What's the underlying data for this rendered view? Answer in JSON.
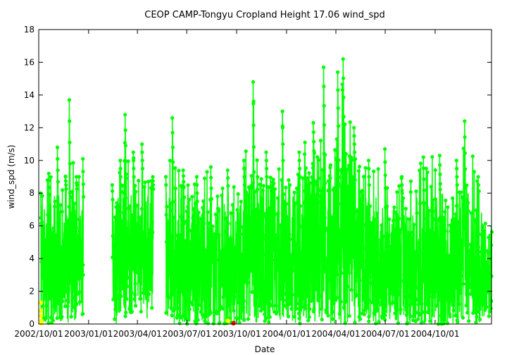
{
  "chart_data": {
    "type": "scatter",
    "title": "CEOP CAMP-Tongyu Cropland Height 17.06 wind_spd",
    "xlabel": "Date",
    "ylabel": "wind_spd (m/s)",
    "x_type": "date",
    "xlim": [
      "2002-10-01",
      "2005-01-13"
    ],
    "ylim": [
      0,
      18
    ],
    "yticks": [
      0,
      2,
      4,
      6,
      8,
      10,
      12,
      14,
      16,
      18
    ],
    "xticks": [
      {
        "date": "2002-10-01",
        "label": "2002/10/01"
      },
      {
        "date": "2003-01-01",
        "label": "2003/01/01"
      },
      {
        "date": "2003-04-01",
        "label": "2003/04/01"
      },
      {
        "date": "2003-07-01",
        "label": "2003/07/01"
      },
      {
        "date": "2003-10-01",
        "label": "2003/10/01"
      },
      {
        "date": "2004-01-01",
        "label": "2004/01/01"
      },
      {
        "date": "2004-04-01",
        "label": "2004/04/01"
      },
      {
        "date": "2004-07-01",
        "label": "2004/07/01"
      },
      {
        "date": "2004-10-01",
        "label": "2004/10/01"
      }
    ],
    "grid": false,
    "legend": "none",
    "series": [
      {
        "color": "#00ff00",
        "marker": "circle",
        "connected": true,
        "segments": [
          {
            "start": "2002-10-05",
            "end": "2002-12-22"
          },
          {
            "start": "2003-02-14",
            "end": "2003-04-30"
          },
          {
            "start": "2003-05-24",
            "end": "2005-01-13"
          }
        ],
        "envelope": [
          {
            "x": "2002-10-05",
            "low": 0.0,
            "high": 6.5,
            "max": 8.0
          },
          {
            "x": "2002-10-20",
            "low": 0.3,
            "high": 7.5,
            "max": 9.2
          },
          {
            "x": "2002-11-05",
            "low": 0.5,
            "high": 8.0,
            "max": 10.8
          },
          {
            "x": "2002-11-20",
            "low": 0.4,
            "high": 8.0,
            "max": 9.0
          },
          {
            "x": "2002-11-27",
            "low": 0.4,
            "high": 8.5,
            "max": 13.7
          },
          {
            "x": "2002-12-10",
            "low": 0.3,
            "high": 7.5,
            "max": 9.0
          },
          {
            "x": "2002-12-22",
            "low": 0.2,
            "high": 7.0,
            "max": 10.1
          },
          {
            "x": "2003-02-14",
            "low": 0.4,
            "high": 7.0,
            "max": 8.5
          },
          {
            "x": "2003-03-01",
            "low": 0.5,
            "high": 8.0,
            "max": 10.0
          },
          {
            "x": "2003-03-10",
            "low": 0.5,
            "high": 9.0,
            "max": 12.8
          },
          {
            "x": "2003-03-25",
            "low": 0.5,
            "high": 8.5,
            "max": 10.5
          },
          {
            "x": "2003-04-10",
            "low": 0.8,
            "high": 9.0,
            "max": 11.0
          },
          {
            "x": "2003-04-30",
            "low": 1.5,
            "high": 8.0,
            "max": 9.0
          },
          {
            "x": "2003-05-24",
            "low": 0.5,
            "high": 7.0,
            "max": 9.0
          },
          {
            "x": "2003-06-05",
            "low": 0.3,
            "high": 9.0,
            "max": 12.6
          },
          {
            "x": "2003-06-25",
            "low": 0.2,
            "high": 8.0,
            "max": 9.4
          },
          {
            "x": "2003-07-20",
            "low": 0.1,
            "high": 7.0,
            "max": 9.0
          },
          {
            "x": "2003-08-15",
            "low": 0.1,
            "high": 7.0,
            "max": 9.6
          },
          {
            "x": "2003-09-15",
            "low": 0.1,
            "high": 7.5,
            "max": 9.4
          },
          {
            "x": "2003-10-15",
            "low": 0.2,
            "high": 8.0,
            "max": 10.0
          },
          {
            "x": "2003-11-01",
            "low": 0.3,
            "high": 9.5,
            "max": 14.8
          },
          {
            "x": "2003-11-25",
            "low": 0.3,
            "high": 8.5,
            "max": 10.5
          },
          {
            "x": "2003-12-25",
            "low": 0.3,
            "high": 9.0,
            "max": 13.0
          },
          {
            "x": "2004-01-25",
            "low": 0.3,
            "high": 8.5,
            "max": 10.5
          },
          {
            "x": "2004-02-20",
            "low": 0.5,
            "high": 10.0,
            "max": 12.3
          },
          {
            "x": "2004-03-10",
            "low": 0.6,
            "high": 11.0,
            "max": 15.7
          },
          {
            "x": "2004-04-05",
            "low": 0.5,
            "high": 11.0,
            "max": 15.4
          },
          {
            "x": "2004-04-15",
            "low": 0.8,
            "high": 11.5,
            "max": 16.2
          },
          {
            "x": "2004-05-05",
            "low": 0.5,
            "high": 10.0,
            "max": 12.0
          },
          {
            "x": "2004-06-01",
            "low": 0.4,
            "high": 8.0,
            "max": 10.0
          },
          {
            "x": "2004-07-01",
            "low": 0.3,
            "high": 7.5,
            "max": 10.7
          },
          {
            "x": "2004-08-01",
            "low": 0.2,
            "high": 7.0,
            "max": 9.0
          },
          {
            "x": "2004-09-10",
            "low": 0.2,
            "high": 7.5,
            "max": 10.2
          },
          {
            "x": "2004-10-10",
            "low": 0.1,
            "high": 8.0,
            "max": 10.3
          },
          {
            "x": "2004-11-10",
            "low": 0.2,
            "high": 8.0,
            "max": 10.0
          },
          {
            "x": "2004-11-25",
            "low": 0.3,
            "high": 8.5,
            "max": 12.4
          },
          {
            "x": "2004-12-20",
            "low": 0.3,
            "high": 7.0,
            "max": 9.0
          },
          {
            "x": "2005-01-13",
            "low": 0.3,
            "high": 5.5,
            "max": 6.0
          }
        ]
      },
      {
        "color": "#ffff00",
        "marker": "circle",
        "points": [
          {
            "x": "2002-10-05",
            "y": 1.3
          },
          {
            "x": "2002-10-05",
            "y": 0.8
          },
          {
            "x": "2002-10-05",
            "y": 0.5
          },
          {
            "x": "2002-10-06",
            "y": 0.2
          },
          {
            "x": "2002-10-06",
            "y": 0.05
          },
          {
            "x": "2003-09-15",
            "y": 0.2
          }
        ]
      },
      {
        "color": "#ff0000",
        "marker": "circle",
        "points": [
          {
            "x": "2003-09-25",
            "y": 0.05
          }
        ]
      }
    ]
  }
}
